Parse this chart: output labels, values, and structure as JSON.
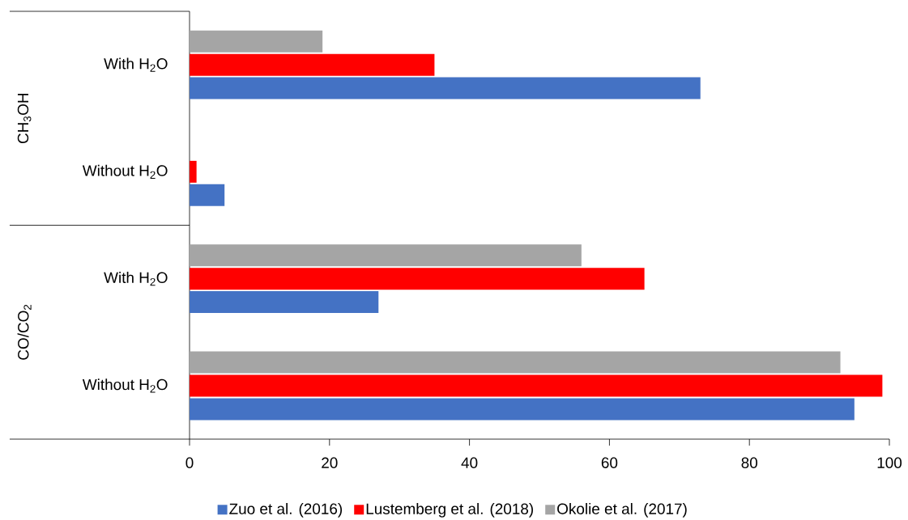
{
  "chart_data": {
    "type": "bar",
    "orientation": "horizontal",
    "categories": [
      "With H$_{2}$O",
      "Without H$_{2}$O",
      "With H$_{2}$O",
      "Without H$_{2}$O"
    ],
    "series": [
      {
        "name": "Zuo et al. (2016)",
        "color": "#4472c4",
        "values": [
          73,
          5,
          27,
          95
        ]
      },
      {
        "name": "Lustemberg et al. (2018)",
        "color": "#ff0000",
        "values": [
          35,
          1,
          65,
          99
        ]
      },
      {
        "name": "Okolie et al. (2017)",
        "color": "#a5a5a5",
        "values": [
          19,
          0,
          56,
          93
        ]
      }
    ],
    "xlim": [
      0,
      100
    ],
    "xticks": [
      0,
      20,
      40,
      60,
      80,
      100
    ],
    "legend": "bottom",
    "grid": false,
    "annotations": [
      "CH$_{3}$OH",
      "CO/CO$_{2}$"
    ]
  }
}
